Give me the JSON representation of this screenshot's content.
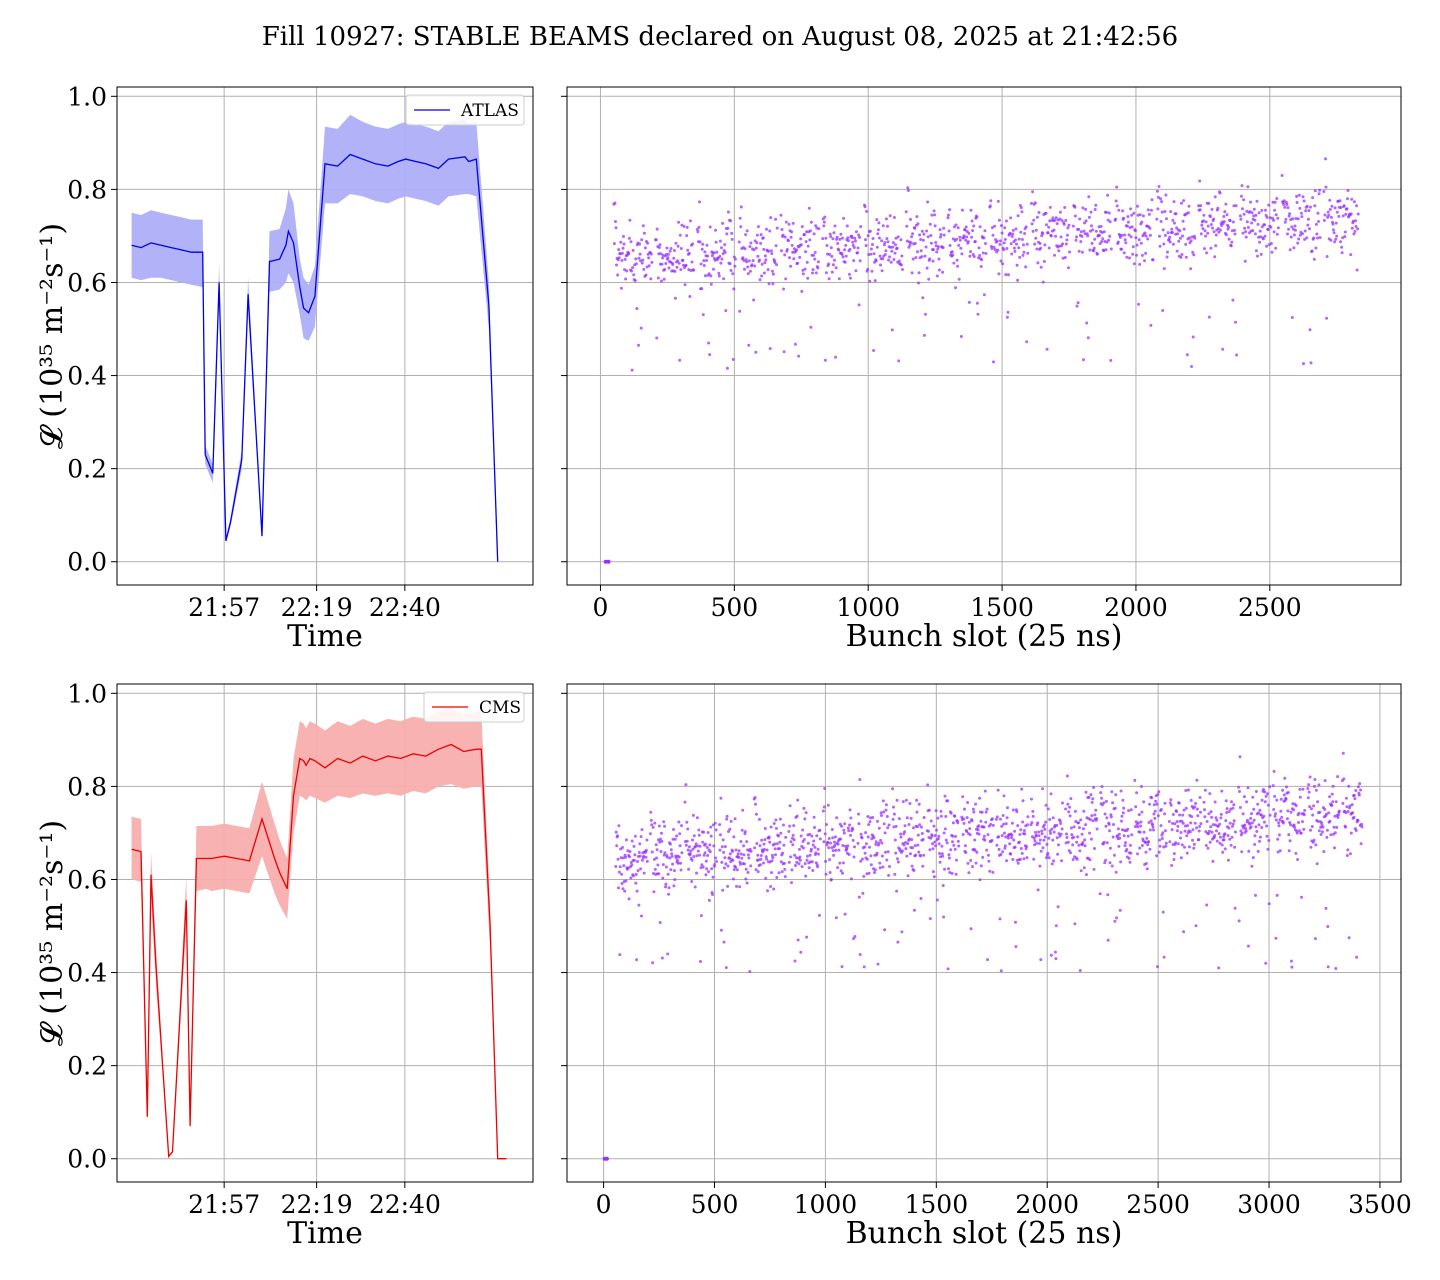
{
  "figure": {
    "title": "Fill 10927: STABLE BEAMS declared on August 08, 2025 at 21:42:56"
  },
  "colors": {
    "atlas": "#0000ee",
    "atlas_band": "#aeaef8",
    "cms": "#ee0000",
    "cms_band": "#f8aeae",
    "points": "#9b30ff",
    "grid": "#b0b0b0"
  },
  "chart_data": [
    {
      "id": "atlas-time",
      "type": "line",
      "title": "",
      "xlabel": "Time",
      "ylabel": "𝓛 (10³⁵ m⁻²s⁻¹)",
      "xlim": [
        21.525,
        23.175
      ],
      "ylim": [
        -0.05,
        1.02
      ],
      "x_tick_values": [
        21.95,
        22.3167,
        22.6667
      ],
      "x_tick_labels": [
        "21:57",
        "22:19",
        "22:40"
      ],
      "y_ticks": [
        0.0,
        0.2,
        0.4,
        0.6,
        0.8,
        1.0
      ],
      "y_tick_labels": [
        "0.0",
        "0.2",
        "0.4",
        "0.6",
        "0.8",
        "1.0"
      ],
      "grid": true,
      "legend": {
        "position": "top-right",
        "entries": [
          "ATLAS"
        ]
      },
      "series": [
        {
          "name": "ATLAS",
          "x": [
            21.583,
            21.62,
            21.66,
            21.7,
            21.74,
            21.78,
            21.82,
            21.865,
            21.875,
            21.905,
            21.93,
            21.957,
            21.975,
            22.02,
            22.045,
            22.1,
            22.13,
            22.17,
            22.195,
            22.205,
            22.225,
            22.25,
            22.265,
            22.285,
            22.31,
            22.35,
            22.4,
            22.45,
            22.5,
            22.55,
            22.6,
            22.64,
            22.67,
            22.71,
            22.75,
            22.8,
            22.84,
            22.905,
            22.92,
            22.95,
            23.0,
            23.035
          ],
          "y": [
            0.68,
            0.675,
            0.685,
            0.68,
            0.675,
            0.67,
            0.665,
            0.665,
            0.23,
            0.19,
            0.6,
            0.045,
            0.085,
            0.22,
            0.575,
            0.055,
            0.645,
            0.65,
            0.68,
            0.71,
            0.685,
            0.59,
            0.545,
            0.535,
            0.57,
            0.855,
            0.85,
            0.875,
            0.865,
            0.855,
            0.85,
            0.86,
            0.865,
            0.86,
            0.855,
            0.845,
            0.865,
            0.87,
            0.86,
            0.865,
            0.55,
            0.0
          ],
          "band_lower": [
            0.61,
            0.605,
            0.61,
            0.61,
            0.605,
            0.6,
            0.595,
            0.59,
            0.21,
            0.17,
            0.56,
            0.04,
            0.075,
            0.2,
            0.54,
            0.05,
            0.58,
            0.585,
            0.6,
            0.62,
            0.6,
            0.53,
            0.48,
            0.475,
            0.505,
            0.77,
            0.77,
            0.79,
            0.785,
            0.775,
            0.77,
            0.78,
            0.785,
            0.78,
            0.775,
            0.765,
            0.785,
            0.79,
            0.79,
            0.785,
            0.5,
            0.0
          ],
          "band_upper": [
            0.75,
            0.745,
            0.755,
            0.75,
            0.745,
            0.74,
            0.735,
            0.735,
            0.25,
            0.21,
            0.64,
            0.05,
            0.095,
            0.24,
            0.61,
            0.06,
            0.71,
            0.715,
            0.76,
            0.8,
            0.77,
            0.65,
            0.61,
            0.595,
            0.635,
            0.935,
            0.93,
            0.96,
            0.945,
            0.935,
            0.93,
            0.94,
            0.945,
            0.94,
            0.935,
            0.925,
            0.945,
            0.95,
            0.94,
            0.945,
            0.6,
            0.0
          ]
        }
      ]
    },
    {
      "id": "atlas-bunch",
      "type": "scatter",
      "title": "",
      "xlabel": "Bunch slot (25 ns)",
      "ylabel": "",
      "xlim": [
        -125,
        2990
      ],
      "ylim": [
        -0.05,
        1.02
      ],
      "x_ticks": [
        0,
        500,
        1000,
        1500,
        2000,
        2500
      ],
      "x_tick_labels": [
        "0",
        "500",
        "1000",
        "1500",
        "2000",
        "2500"
      ],
      "y_ticks": [
        0.0,
        0.2,
        0.4,
        0.6,
        0.8,
        1.0
      ],
      "grid": true,
      "zero_points_x": [
        20,
        30
      ],
      "trains": {
        "x_start": 50,
        "x_end": 2830,
        "step": 2,
        "train_length": 144,
        "gap": 12,
        "base_start": 0.65,
        "base_end": 0.73,
        "spread": 0.055,
        "outlier_fraction": 0.045,
        "outlier_low": 0.41,
        "outlier_high": 0.58,
        "seed": 7
      }
    },
    {
      "id": "cms-time",
      "type": "line",
      "title": "",
      "xlabel": "Time",
      "ylabel": "𝓛 (10³⁵ m⁻²s⁻¹)",
      "xlim": [
        21.525,
        23.175
      ],
      "ylim": [
        -0.05,
        1.02
      ],
      "x_tick_values": [
        21.95,
        22.3167,
        22.6667
      ],
      "x_tick_labels": [
        "21:57",
        "22:19",
        "22:40"
      ],
      "y_ticks": [
        0.0,
        0.2,
        0.4,
        0.6,
        0.8,
        1.0
      ],
      "y_tick_labels": [
        "0.0",
        "0.2",
        "0.4",
        "0.6",
        "0.8",
        "1.0"
      ],
      "grid": true,
      "legend": {
        "position": "top-right",
        "entries": [
          "CMS"
        ]
      },
      "series": [
        {
          "name": "CMS",
          "x": [
            21.583,
            21.62,
            21.645,
            21.66,
            21.68,
            21.73,
            21.745,
            21.8,
            21.815,
            21.84,
            21.88,
            21.9,
            21.95,
            22.0,
            22.05,
            22.1,
            22.15,
            22.17,
            22.2,
            22.225,
            22.25,
            22.265,
            22.275,
            22.29,
            22.31,
            22.35,
            22.4,
            22.45,
            22.5,
            22.55,
            22.6,
            22.65,
            22.7,
            22.75,
            22.8,
            22.85,
            22.9,
            22.95,
            22.97,
            23.005,
            23.035,
            23.07
          ],
          "y": [
            0.665,
            0.66,
            0.09,
            0.61,
            0.41,
            0.005,
            0.015,
            0.555,
            0.07,
            0.645,
            0.645,
            0.645,
            0.65,
            0.645,
            0.64,
            0.73,
            0.645,
            0.615,
            0.58,
            0.78,
            0.86,
            0.855,
            0.845,
            0.86,
            0.855,
            0.84,
            0.86,
            0.85,
            0.865,
            0.855,
            0.865,
            0.86,
            0.87,
            0.865,
            0.88,
            0.89,
            0.875,
            0.88,
            0.88,
            0.5,
            0.0,
            0.0
          ],
          "band_lower": [
            0.6,
            0.595,
            0.08,
            0.56,
            0.37,
            0.004,
            0.012,
            0.5,
            0.06,
            0.575,
            0.58,
            0.575,
            0.58,
            0.575,
            0.57,
            0.65,
            0.57,
            0.545,
            0.515,
            0.7,
            0.78,
            0.775,
            0.77,
            0.78,
            0.775,
            0.765,
            0.78,
            0.775,
            0.785,
            0.78,
            0.785,
            0.78,
            0.79,
            0.785,
            0.8,
            0.805,
            0.795,
            0.8,
            0.8,
            0.45,
            0.0,
            0.0
          ],
          "band_upper": [
            0.735,
            0.73,
            0.1,
            0.66,
            0.45,
            0.006,
            0.018,
            0.61,
            0.08,
            0.715,
            0.715,
            0.715,
            0.72,
            0.715,
            0.71,
            0.81,
            0.72,
            0.685,
            0.645,
            0.86,
            0.94,
            0.935,
            0.925,
            0.94,
            0.935,
            0.92,
            0.94,
            0.93,
            0.945,
            0.935,
            0.945,
            0.94,
            0.95,
            0.945,
            0.96,
            0.97,
            0.955,
            0.96,
            0.96,
            0.55,
            0.0,
            0.0
          ]
        }
      ]
    },
    {
      "id": "cms-bunch",
      "type": "scatter",
      "title": "",
      "xlabel": "Bunch slot (25 ns)",
      "ylabel": "",
      "xlim": [
        -165,
        3595
      ],
      "ylim": [
        -0.05,
        1.02
      ],
      "x_ticks": [
        0,
        500,
        1000,
        1500,
        2000,
        2500,
        3000,
        3500
      ],
      "x_tick_labels": [
        "0",
        "500",
        "1000",
        "1500",
        "2000",
        "2500",
        "3000",
        "3500"
      ],
      "y_ticks": [
        0.0,
        0.2,
        0.4,
        0.6,
        0.8,
        1.0
      ],
      "grid": true,
      "zero_points_x": [
        5,
        15
      ],
      "trains": {
        "x_start": 55,
        "x_end": 3420,
        "step": 2,
        "train_length": 144,
        "gap": 12,
        "base_start": 0.64,
        "base_end": 0.74,
        "spread": 0.06,
        "outlier_fraction": 0.045,
        "outlier_low": 0.4,
        "outlier_high": 0.58,
        "seed": 11
      }
    }
  ]
}
